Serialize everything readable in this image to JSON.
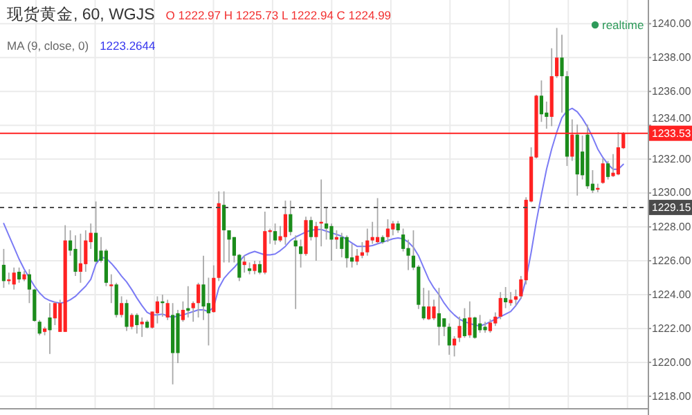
{
  "chart_data": {
    "type": "candlestick",
    "title": "现货黄金, 60, WGJS",
    "annotations": [
      "O 1222.97 H 1225.73 L 1222.94 C 1224.99",
      "MA (9, close, 0)",
      "1223.2644",
      "realtime"
    ],
    "categories": [
      null,
      null,
      null,
      null,
      null,
      null,
      null,
      null,
      null,
      null,
      null,
      null,
      null,
      null,
      null,
      null,
      null,
      null,
      null,
      null,
      null,
      null,
      null,
      null,
      null,
      null,
      null,
      null,
      null,
      null,
      null,
      null,
      null,
      null,
      null,
      null,
      null,
      null,
      null,
      null,
      null,
      null,
      null,
      null,
      null,
      null,
      null,
      null,
      null,
      null,
      null,
      null,
      null,
      null,
      null,
      null,
      null,
      null,
      null,
      null,
      null,
      null,
      null,
      null,
      null,
      null,
      null,
      null,
      null,
      null,
      null,
      null,
      null,
      null,
      null,
      null,
      null,
      null,
      null,
      null,
      null,
      null,
      null,
      null,
      null,
      null,
      null,
      null,
      null,
      null,
      null,
      null,
      null,
      null,
      null,
      null,
      null,
      null,
      null,
      null,
      null,
      null,
      null,
      null,
      null,
      null,
      null,
      null,
      null,
      null,
      null,
      null,
      null,
      null,
      null,
      null,
      null,
      null,
      null,
      null,
      null,
      null
    ],
    "ohlc": [
      [
        1225.76,
        1226.7,
        1224.4,
        1224.8
      ],
      [
        1224.8,
        1225.3,
        1224.6,
        1224.9
      ],
      [
        1224.6,
        1225.6,
        1224.3,
        1225.3
      ],
      [
        1225.35,
        1225.6,
        1224.7,
        1224.9
      ],
      [
        1224.9,
        1225.4,
        1224.8,
        1225.2
      ],
      [
        1225.2,
        1225.5,
        1223.5,
        1224.3
      ],
      [
        1224.3,
        1224.35,
        1222.4,
        1222.45
      ],
      [
        1222.4,
        1222.5,
        1221.6,
        1221.7
      ],
      [
        1221.8,
        1222.1,
        1221.6,
        1222.0
      ],
      [
        1222.65,
        1223.5,
        1220.5,
        1221.9
      ],
      [
        1222.6,
        1223.6,
        1222.2,
        1223.5
      ],
      [
        1221.8,
        1223.7,
        1221.8,
        1223.5
      ],
      [
        1221.8,
        1228.1,
        1221.8,
        1227.2
      ],
      [
        1227.2,
        1227.8,
        1226.3,
        1226.6
      ],
      [
        1226.7,
        1227.5,
        1225.1,
        1225.35
      ],
      [
        1225.35,
        1227.6,
        1224.7,
        1225.85
      ],
      [
        1225.8,
        1227.8,
        1225.35,
        1227.2
      ],
      [
        1227.1,
        1228.2,
        1226.7,
        1227.65
      ],
      [
        1227.65,
        1229.5,
        1225.9,
        1225.95
      ],
      [
        1226.6,
        1227.4,
        1225.9,
        1226.0
      ],
      [
        1226.6,
        1226.7,
        1224.5,
        1224.7
      ],
      [
        1224.5,
        1225.2,
        1223.5,
        1224.6
      ],
      [
        1224.6,
        1224.7,
        1222.65,
        1222.8
      ],
      [
        1222.8,
        1223.9,
        1222.65,
        1223.5
      ],
      [
        1223.5,
        1223.7,
        1221.85,
        1222.1
      ],
      [
        1222.1,
        1222.9,
        1221.95,
        1222.8
      ],
      [
        1222.8,
        1222.9,
        1221.7,
        1222.2
      ],
      [
        1222.25,
        1222.65,
        1221.5,
        1222.4
      ],
      [
        1222.4,
        1222.5,
        1222.0,
        1222.05
      ],
      [
        1222.05,
        1223.0,
        1222.0,
        1223.0
      ],
      [
        1222.9,
        1223.9,
        1222.3,
        1223.6
      ],
      [
        1223.6,
        1224.0,
        1222.7,
        1223.5
      ],
      [
        1222.65,
        1223.7,
        1222.5,
        1223.5
      ],
      [
        1222.8,
        1223.5,
        1218.7,
        1220.55
      ],
      [
        1222.9,
        1223.1,
        1219.95,
        1220.55
      ],
      [
        1222.5,
        1223.6,
        1222.4,
        1223.1
      ],
      [
        1223.2,
        1224.5,
        1222.65,
        1223.05
      ],
      [
        1223.2,
        1223.6,
        1222.4,
        1223.5
      ],
      [
        1223.5,
        1224.7,
        1222.65,
        1224.6
      ],
      [
        1224.6,
        1226.3,
        1222.5,
        1223.3
      ],
      [
        1223.5,
        1225.0,
        1221.0,
        1222.9
      ],
      [
        1222.97,
        1225.73,
        1222.94,
        1224.99
      ],
      [
        1224.99,
        1230.1,
        1224.8,
        1229.4
      ],
      [
        1229.3,
        1230.1,
        1225.9,
        1227.8
      ],
      [
        1227.8,
        1227.8,
        1225.9,
        1227.25
      ],
      [
        1227.4,
        1227.4,
        1225.9,
        1226.3
      ],
      [
        1226.35,
        1226.4,
        1224.8,
        1225.0
      ],
      [
        1225.75,
        1226.3,
        1225.3,
        1225.95
      ],
      [
        1225.55,
        1225.9,
        1225.2,
        1225.4
      ],
      [
        1225.4,
        1226.0,
        1225.2,
        1225.8
      ],
      [
        1225.8,
        1226.0,
        1225.2,
        1225.3
      ],
      [
        1225.3,
        1228.9,
        1225.2,
        1227.75
      ],
      [
        1227.7,
        1227.9,
        1227.0,
        1227.8
      ],
      [
        1227.75,
        1228.2,
        1226.95,
        1227.2
      ],
      [
        1227.2,
        1228.05,
        1227.1,
        1227.45
      ],
      [
        1227.4,
        1229.55,
        1226.95,
        1228.75
      ],
      [
        1228.75,
        1229.55,
        1227.5,
        1227.7
      ],
      [
        1227.2,
        1227.5,
        1223.15,
        1226.85
      ],
      [
        1226.85,
        1227.25,
        1225.6,
        1226.4
      ],
      [
        1226.4,
        1228.6,
        1226.3,
        1228.4
      ],
      [
        1228.4,
        1228.6,
        1227.2,
        1227.4
      ],
      [
        1227.4,
        1228.3,
        1226.0,
        1228.05
      ],
      [
        1228.2,
        1230.8,
        1226.85,
        1228.3
      ],
      [
        1228.2,
        1229.15,
        1227.25,
        1227.9
      ],
      [
        1228.05,
        1228.2,
        1226.0,
        1227.25
      ],
      [
        1227.25,
        1227.8,
        1226.7,
        1227.4
      ],
      [
        1227.4,
        1227.65,
        1226.2,
        1226.7
      ],
      [
        1227.4,
        1227.5,
        1225.6,
        1226.15
      ],
      [
        1226.2,
        1227.0,
        1225.6,
        1225.95
      ],
      [
        1225.95,
        1226.7,
        1225.75,
        1226.3
      ],
      [
        1226.3,
        1227.1,
        1226.15,
        1226.5
      ],
      [
        1226.5,
        1227.9,
        1226.3,
        1227.2
      ],
      [
        1227.2,
        1228.3,
        1227.0,
        1227.4
      ],
      [
        1227.1,
        1229.7,
        1227.0,
        1227.4
      ],
      [
        1227.4,
        1227.5,
        1227.0,
        1227.1
      ],
      [
        1227.4,
        1228.45,
        1227.1,
        1227.9
      ],
      [
        1227.85,
        1228.35,
        1227.5,
        1228.2
      ],
      [
        1228.2,
        1228.35,
        1227.65,
        1227.8
      ],
      [
        1227.55,
        1227.9,
        1226.55,
        1226.7
      ],
      [
        1226.75,
        1227.25,
        1225.45,
        1226.3
      ],
      [
        1226.3,
        1227.8,
        1225.45,
        1225.6
      ],
      [
        1225.65,
        1225.75,
        1223.15,
        1223.4
      ],
      [
        1223.3,
        1224.4,
        1222.5,
        1222.6
      ],
      [
        1222.55,
        1224.25,
        1222.5,
        1223.3
      ],
      [
        1222.6,
        1223.7,
        1222.5,
        1223.3
      ],
      [
        1222.9,
        1224.4,
        1221.0,
        1222.1
      ],
      [
        1222.6,
        1222.6,
        1221.55,
        1222.1
      ],
      [
        1222.1,
        1222.3,
        1220.45,
        1221.0
      ],
      [
        1221.0,
        1221.55,
        1220.35,
        1221.4
      ],
      [
        1221.45,
        1222.7,
        1221.2,
        1222.15
      ],
      [
        1222.6,
        1223.2,
        1221.45,
        1221.55
      ],
      [
        1221.6,
        1223.6,
        1221.45,
        1222.65
      ],
      [
        1222.65,
        1222.7,
        1221.4,
        1221.45
      ],
      [
        1222.3,
        1222.8,
        1221.75,
        1221.9
      ],
      [
        1222.1,
        1222.4,
        1221.75,
        1221.9
      ],
      [
        1221.85,
        1222.55,
        1221.75,
        1222.35
      ],
      [
        1222.3,
        1222.95,
        1222.15,
        1222.7
      ],
      [
        1222.7,
        1224.15,
        1222.55,
        1223.8
      ],
      [
        1223.8,
        1224.45,
        1223.2,
        1223.55
      ],
      [
        1223.5,
        1224.15,
        1223.35,
        1223.7
      ],
      [
        1223.7,
        1224.3,
        1223.35,
        1223.9
      ],
      [
        1223.9,
        1225.1,
        1223.75,
        1224.9
      ],
      [
        1224.85,
        1229.75,
        1224.6,
        1229.6
      ],
      [
        1229.5,
        1232.7,
        1229.45,
        1232.15
      ],
      [
        1232.1,
        1235.8,
        1232.05,
        1235.75
      ],
      [
        1235.75,
        1236.65,
        1234.2,
        1234.65
      ],
      [
        1234.75,
        1235.4,
        1233.8,
        1234.5
      ],
      [
        1234.5,
        1238.55,
        1233.95,
        1236.9
      ],
      [
        1236.9,
        1239.75,
        1236.8,
        1238.0
      ],
      [
        1238.0,
        1239.35,
        1234.75,
        1236.9
      ],
      [
        1236.9,
        1237.2,
        1231.6,
        1232.15
      ],
      [
        1232.15,
        1234.35,
        1231.9,
        1233.45
      ],
      [
        1233.45,
        1234.05,
        1229.85,
        1231.1
      ],
      [
        1232.45,
        1233.4,
        1230.8,
        1231.05
      ],
      [
        1233.45,
        1234.05,
        1230.25,
        1230.4
      ],
      [
        1230.55,
        1231.35,
        1230.0,
        1230.15
      ],
      [
        1230.2,
        1230.55,
        1230.05,
        1230.3
      ],
      [
        1230.6,
        1232.05,
        1230.55,
        1231.75
      ],
      [
        1231.75,
        1231.9,
        1230.8,
        1230.95
      ],
      [
        1231.0,
        1232.3,
        1230.95,
        1231.2
      ],
      [
        1231.1,
        1233.6,
        1231.05,
        1232.7
      ],
      [
        1232.65,
        1233.6,
        1232.6,
        1233.53
      ]
    ],
    "colors": [
      "#1b8c1b",
      "#ff2222",
      "#ff2222",
      "#1b8c1b",
      "#ff2222",
      "#1b8c1b",
      "#1b8c1b",
      "#1b8c1b",
      "#ff2222",
      "#1b8c1b",
      "#ff2222",
      "#ff2222",
      "#ff2222",
      "#1b8c1b",
      "#1b8c1b",
      "#ff2222",
      "#ff2222",
      "#ff2222",
      "#1b8c1b",
      "#1b8c1b",
      "#1b8c1b",
      "#ff2222",
      "#1b8c1b",
      "#ff2222",
      "#1b8c1b",
      "#ff2222",
      "#1b8c1b",
      "#ff2222",
      "#1b8c1b",
      "#ff2222",
      "#ff2222",
      "#1b8c1b",
      "#ff2222",
      "#1b8c1b",
      "#1b8c1b",
      "#ff2222",
      "#1b8c1b",
      "#ff2222",
      "#ff2222",
      "#1b8c1b",
      "#1b8c1b",
      "#ff2222",
      "#ff2222",
      "#1b8c1b",
      "#1b8c1b",
      "#1b8c1b",
      "#1b8c1b",
      "#ff2222",
      "#1b8c1b",
      "#ff2222",
      "#1b8c1b",
      "#ff2222",
      "#ff2222",
      "#1b8c1b",
      "#ff2222",
      "#ff2222",
      "#1b8c1b",
      "#1b8c1b",
      "#1b8c1b",
      "#ff2222",
      "#1b8c1b",
      "#ff2222",
      "#ff2222",
      "#1b8c1b",
      "#1b8c1b",
      "#ff2222",
      "#1b8c1b",
      "#1b8c1b",
      "#1b8c1b",
      "#ff2222",
      "#ff2222",
      "#ff2222",
      "#ff2222",
      "#ff2222",
      "#1b8c1b",
      "#ff2222",
      "#ff2222",
      "#1b8c1b",
      "#1b8c1b",
      "#1b8c1b",
      "#1b8c1b",
      "#1b8c1b",
      "#1b8c1b",
      "#ff2222",
      "#ff2222",
      "#1b8c1b",
      "#1b8c1b",
      "#1b8c1b",
      "#ff2222",
      "#ff2222",
      "#1b8c1b",
      "#ff2222",
      "#1b8c1b",
      "#1b8c1b",
      "#1b8c1b",
      "#ff2222",
      "#ff2222",
      "#ff2222",
      "#1b8c1b",
      "#ff2222",
      "#ff2222",
      "#ff2222",
      "#ff2222",
      "#ff2222",
      "#ff2222",
      "#1b8c1b",
      "#1b8c1b",
      "#ff2222",
      "#ff2222",
      "#1b8c1b",
      "#1b8c1b",
      "#ff2222",
      "#1b8c1b",
      "#1b8c1b",
      "#1b8c1b",
      "#1b8c1b",
      "#ff2222",
      "#ff2222",
      "#1b8c1b",
      "#ff2222",
      "#ff2222",
      "#ff2222"
    ],
    "series": [
      {
        "type": "line",
        "color": "#7b7bf5",
        "values": [
          1228.2,
          1227.5,
          1226.8,
          1226.1,
          1225.5,
          1225.0,
          1224.5,
          1224.1,
          1223.8,
          1223.65,
          1223.55,
          1223.5,
          1223.55,
          1223.7,
          1223.9,
          1224.2,
          1224.5,
          1224.9,
          1225.8,
          1226.2,
          1226.15,
          1225.85,
          1225.5,
          1225.1,
          1224.75,
          1224.3,
          1223.8,
          1223.35,
          1222.95,
          1222.8,
          1222.8,
          1222.85,
          1222.75,
          1222.65,
          1222.75,
          1222.8,
          1222.9,
          1223.0,
          1223.1,
          1223.1,
          1223.0,
          1223.26,
          1224.4,
          1224.95,
          1225.3,
          1225.6,
          1225.95,
          1226.3,
          1226.45,
          1226.55,
          1226.45,
          1226.35,
          1226.35,
          1226.4,
          1226.6,
          1226.85,
          1227.2,
          1227.4,
          1227.55,
          1227.7,
          1227.8,
          1227.85,
          1227.85,
          1227.75,
          1227.65,
          1227.55,
          1227.45,
          1227.25,
          1227.05,
          1226.85,
          1226.85,
          1226.85,
          1226.9,
          1227.0,
          1227.1,
          1227.2,
          1227.3,
          1227.35,
          1227.3,
          1227.1,
          1226.8,
          1226.3,
          1225.6,
          1224.9,
          1224.4,
          1224.0,
          1223.5,
          1223.1,
          1222.8,
          1222.55,
          1222.4,
          1222.3,
          1222.2,
          1222.15,
          1222.25,
          1222.4,
          1222.55,
          1222.7,
          1222.85,
          1223.0,
          1223.35,
          1223.8,
          1224.9,
          1226.5,
          1228.3,
          1229.9,
          1231.4,
          1232.6,
          1233.6,
          1234.45,
          1234.85,
          1235.0,
          1234.8,
          1234.4,
          1233.9,
          1233.3,
          1232.6,
          1232.1,
          1231.7,
          1231.4,
          1231.4,
          1231.7
        ]
      }
    ],
    "ylim": [
      1217.3,
      1241.4
    ],
    "yticks": [
      {
        "value": 1218,
        "label": "1218.00"
      },
      {
        "value": 1220,
        "label": "1220.00"
      },
      {
        "value": 1222,
        "label": "1222.00"
      },
      {
        "value": 1224,
        "label": "1224.00"
      },
      {
        "value": 1226,
        "label": "1226.00"
      },
      {
        "value": 1228,
        "label": "1228.00"
      },
      {
        "value": 1230,
        "label": "1230.00"
      },
      {
        "value": 1232,
        "label": "1232.00"
      },
      {
        "value": 1234,
        "label": "1234.00"
      },
      {
        "value": 1236,
        "label": "1236.00"
      },
      {
        "value": 1238,
        "label": "1238.00"
      },
      {
        "value": 1240,
        "label": "1240.00"
      }
    ],
    "grid": true,
    "ref_lines": [
      {
        "axis": "y",
        "value": 1233.53,
        "label": "1233.53",
        "color": "#ff2222"
      },
      {
        "axis": "y",
        "value": 1229.15,
        "label": "1229.15",
        "color": "#4a4a4a",
        "line_style": "dashed"
      }
    ]
  }
}
